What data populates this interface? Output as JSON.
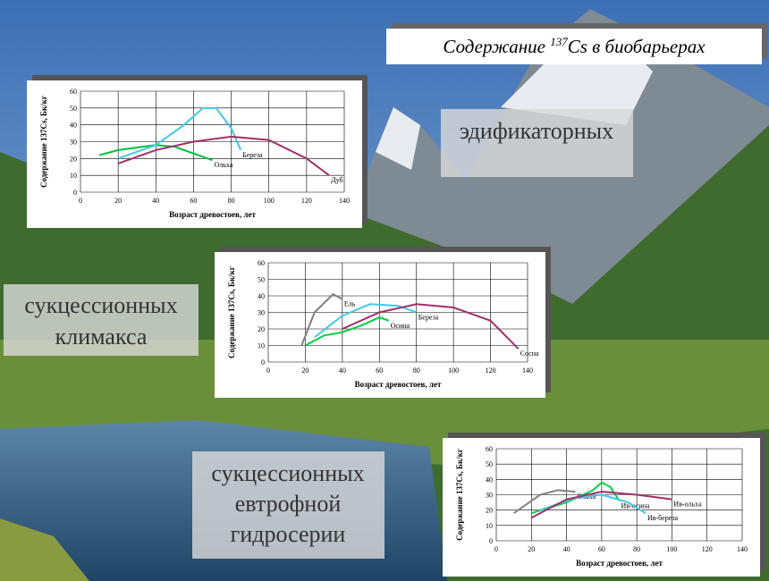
{
  "title": {
    "before": "Содержание ",
    "sup": "137",
    "after": "Cs в биобарьерах"
  },
  "labels": [
    [
      "эдификаторных"
    ],
    [
      "сукцессионных",
      "климакса"
    ],
    [
      "сукцессионных",
      "евтрофной",
      "гидросерии"
    ]
  ],
  "chart_data": [
    {
      "type": "line",
      "xlabel": "Возраст древостоев, лет",
      "ylabel": "Содержание 137Cs, Бк/кг",
      "xlim": [
        0,
        140
      ],
      "xticks": [
        0,
        20,
        40,
        60,
        80,
        100,
        120,
        140
      ],
      "ylim": [
        0,
        60
      ],
      "yticks": [
        0,
        10,
        20,
        30,
        40,
        50,
        60
      ],
      "grid": true,
      "series": [
        {
          "name": "Ольха",
          "color": "#00c040",
          "x": [
            10,
            20,
            40,
            50,
            60,
            70
          ],
          "values": [
            22,
            25,
            28,
            27,
            23,
            19
          ]
        },
        {
          "name": "Береза",
          "color": "#40c8e8",
          "x": [
            20,
            40,
            55,
            65,
            72,
            80,
            85
          ],
          "values": [
            20,
            28,
            40,
            50,
            50,
            38,
            25
          ]
        },
        {
          "name": "Дуб",
          "color": "#a0306a",
          "x": [
            20,
            40,
            60,
            80,
            100,
            120,
            132
          ],
          "values": [
            17,
            25,
            30,
            33,
            31,
            20,
            10
          ]
        }
      ]
    },
    {
      "type": "line",
      "xlabel": "Возраст древостоев, лет",
      "ylabel": "Содержание 137Cs, Бк/кг",
      "xlim": [
        0,
        140
      ],
      "xticks": [
        0,
        20,
        40,
        60,
        80,
        100,
        120,
        140
      ],
      "ylim": [
        0,
        60
      ],
      "yticks": [
        0,
        10,
        20,
        30,
        40,
        50,
        60
      ],
      "grid": true,
      "series": [
        {
          "name": "Ель",
          "color": "#808080",
          "x": [
            18,
            25,
            35,
            40
          ],
          "values": [
            10,
            30,
            41,
            38
          ]
        },
        {
          "name": "Береза",
          "color": "#40c8e8",
          "x": [
            25,
            40,
            55,
            70,
            80
          ],
          "values": [
            15,
            28,
            35,
            34,
            30
          ]
        },
        {
          "name": "Осина",
          "color": "#00d040",
          "x": [
            20,
            30,
            40,
            50,
            60,
            65
          ],
          "values": [
            10,
            16,
            18,
            22,
            27,
            25
          ]
        },
        {
          "name": "Сосна",
          "color": "#a0306a",
          "x": [
            40,
            60,
            80,
            100,
            120,
            135
          ],
          "values": [
            20,
            30,
            35,
            33,
            25,
            8
          ]
        }
      ]
    },
    {
      "type": "line",
      "xlabel": "Возраст древостоев, лет",
      "ylabel": "Содержание 137Cs, Бк/кг",
      "xlim": [
        0,
        140
      ],
      "xticks": [
        0,
        20,
        40,
        60,
        80,
        100,
        120,
        140
      ],
      "ylim": [
        0,
        60
      ],
      "yticks": [
        0,
        10,
        20,
        30,
        40,
        50,
        60
      ],
      "grid": true,
      "series": [
        {
          "name": "Ольха",
          "color": "#808080",
          "x": [
            10,
            25,
            35,
            45
          ],
          "values": [
            18,
            30,
            33,
            32
          ]
        },
        {
          "name": "Ив-осина",
          "color": "#00d040",
          "x": [
            20,
            40,
            55,
            60,
            65,
            70
          ],
          "values": [
            18,
            25,
            33,
            38,
            35,
            26
          ]
        },
        {
          "name": "Ив-береза",
          "color": "#40c8e8",
          "x": [
            25,
            45,
            60,
            75,
            85
          ],
          "values": [
            20,
            28,
            30,
            25,
            18
          ]
        },
        {
          "name": "Ив-ольха",
          "color": "#a0306a",
          "x": [
            20,
            40,
            60,
            80,
            100
          ],
          "values": [
            15,
            27,
            32,
            30,
            27
          ]
        }
      ]
    }
  ]
}
